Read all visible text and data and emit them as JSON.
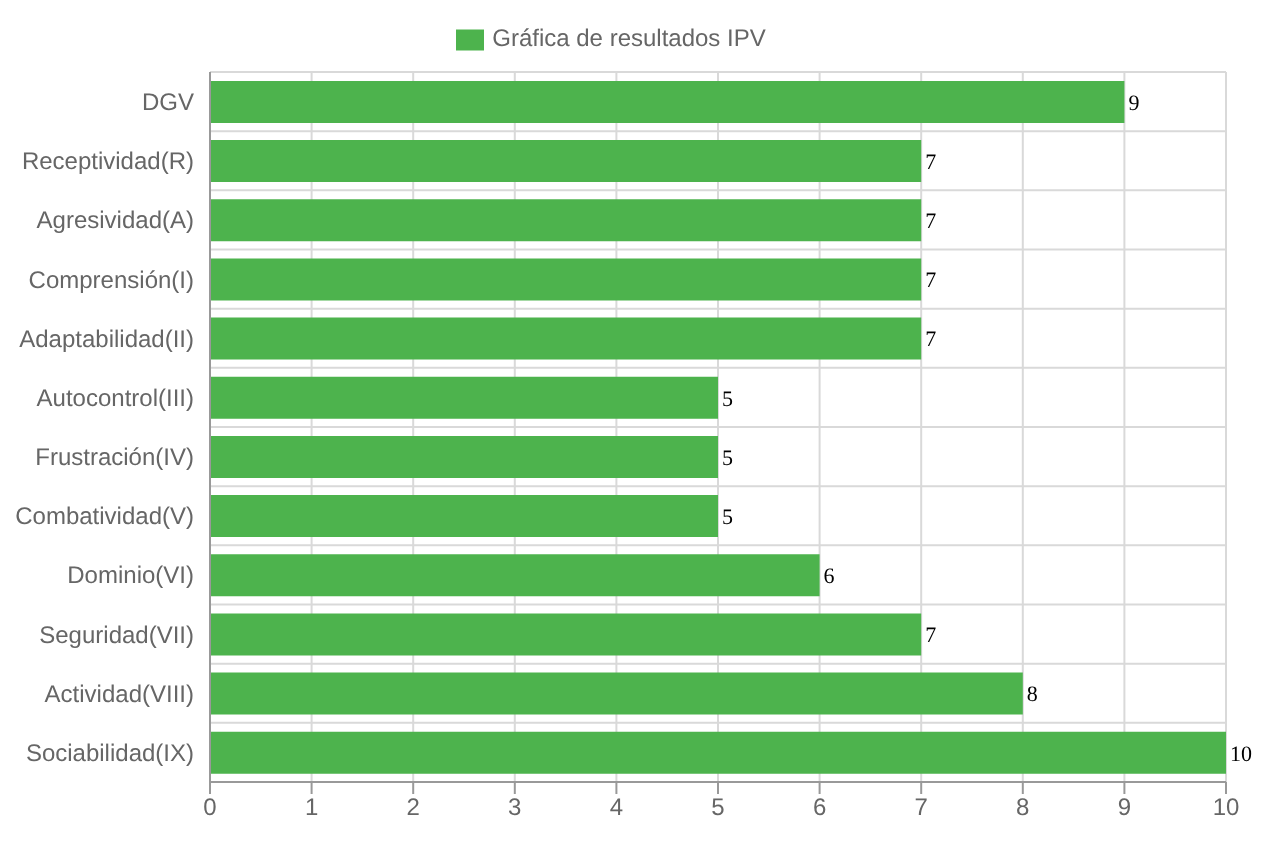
{
  "chart_data": {
    "type": "bar",
    "orientation": "horizontal",
    "categories": [
      "DGV",
      "Receptividad(R)",
      "Agresividad(A)",
      "Comprensión(I)",
      "Adaptabilidad(II)",
      "Autocontrol(III)",
      "Frustración(IV)",
      "Combatividad(V)",
      "Dominio(VI)",
      "Seguridad(VII)",
      "Actividad(VIII)",
      "Sociabilidad(IX)"
    ],
    "series": [
      {
        "name": "Gráfica de resultados IPV",
        "color": "#4db34d",
        "values": [
          9,
          7,
          7,
          7,
          7,
          5,
          5,
          5,
          6,
          7,
          8,
          10
        ]
      }
    ],
    "xlim": [
      0,
      10
    ],
    "xticks": [
      0,
      1,
      2,
      3,
      4,
      5,
      6,
      7,
      8,
      9,
      10
    ],
    "grid": true,
    "legend": "top",
    "data_labels": true
  }
}
